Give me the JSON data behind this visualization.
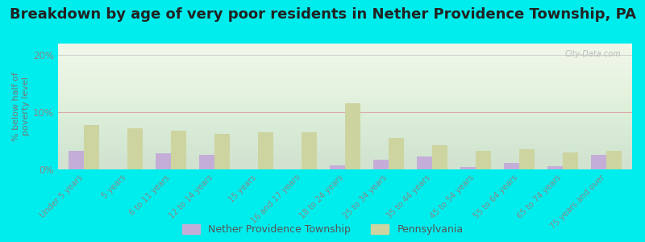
{
  "title": "Breakdown by age of very poor residents in Nether Providence Township, PA",
  "categories": [
    "Under 5 years",
    "5 years",
    "6 to 11 years",
    "12 to 14 years",
    "15 years",
    "16 and 17 years",
    "18 to 24 years",
    "25 to 34 years",
    "35 to 44 years",
    "45 to 54 years",
    "55 to 64 years",
    "65 to 74 years",
    "75 years and over"
  ],
  "township_values": [
    3.2,
    0.0,
    2.8,
    2.5,
    0.0,
    0.0,
    0.7,
    1.7,
    2.2,
    0.4,
    1.1,
    0.6,
    2.5
  ],
  "pa_values": [
    7.8,
    7.2,
    6.8,
    6.2,
    6.5,
    6.5,
    11.5,
    5.5,
    4.2,
    3.2,
    3.5,
    3.0,
    3.3
  ],
  "ylabel": "% below half of\npoverty level",
  "ylim": [
    0,
    22
  ],
  "yticks": [
    0,
    10,
    20
  ],
  "yticklabels": [
    "0%",
    "10%",
    "20%"
  ],
  "township_color": "#c4aed8",
  "pa_color": "#cdd4a0",
  "outer_bg": "#00eded",
  "title_fontsize": 13,
  "bar_width": 0.35,
  "legend_township": "Nether Providence Township",
  "legend_pa": "Pennsylvania",
  "axis_label_color": "#777777",
  "tick_label_color": "#888888",
  "watermark": "City-Data.com"
}
